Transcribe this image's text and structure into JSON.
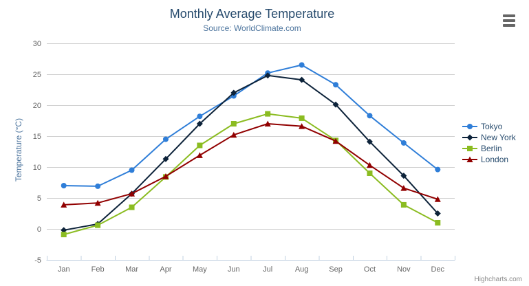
{
  "header": {
    "title": "Monthly Average Temperature",
    "subtitle": "Source: WorldClimate.com"
  },
  "credits": {
    "label": "Highcharts.com"
  },
  "icons": {
    "context_menu": "hamburger-menu-icon"
  },
  "colors": {
    "title": "#274b6d",
    "subtitle": "#4d759e",
    "axis_label": "#666666",
    "axis_title": "#4d759e",
    "grid": "#d0d0d0",
    "axis_line": "#c0d0e0",
    "legend_text": "#274b6d",
    "credits": "#8a8a8a"
  },
  "chart_data": {
    "type": "line",
    "title": "Monthly Average Temperature",
    "subtitle": "Source: WorldClimate.com",
    "categories": [
      "Jan",
      "Feb",
      "Mar",
      "Apr",
      "May",
      "Jun",
      "Jul",
      "Aug",
      "Sep",
      "Oct",
      "Nov",
      "Dec"
    ],
    "series": [
      {
        "name": "Tokyo",
        "color": "#2f7ed8",
        "marker": "circle",
        "values": [
          7.0,
          6.9,
          9.5,
          14.5,
          18.2,
          21.5,
          25.2,
          26.5,
          23.3,
          18.3,
          13.9,
          9.6
        ]
      },
      {
        "name": "New York",
        "color": "#0d233a",
        "marker": "diamond",
        "values": [
          -0.2,
          0.8,
          5.7,
          11.3,
          17.0,
          22.0,
          24.8,
          24.1,
          20.1,
          14.1,
          8.6,
          2.5
        ]
      },
      {
        "name": "Berlin",
        "color": "#8bbc21",
        "marker": "square",
        "values": [
          -0.9,
          0.6,
          3.5,
          8.4,
          13.5,
          17.0,
          18.6,
          17.9,
          14.3,
          9.0,
          3.9,
          1.0
        ]
      },
      {
        "name": "London",
        "color": "#910000",
        "marker": "triangle",
        "values": [
          3.9,
          4.2,
          5.7,
          8.5,
          11.9,
          15.2,
          17.0,
          16.6,
          14.2,
          10.3,
          6.6,
          4.8
        ]
      }
    ],
    "xlabel": "",
    "ylabel": "Temperature (°C)",
    "ylim": [
      -5,
      30
    ],
    "ytick_step": 5,
    "grid": true,
    "legend_position": "right"
  }
}
